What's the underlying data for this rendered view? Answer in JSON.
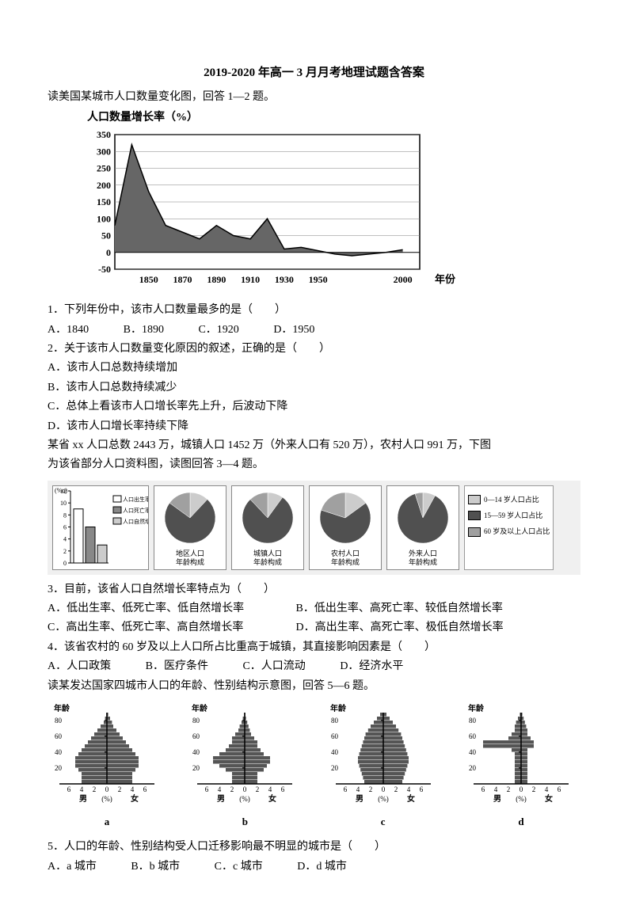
{
  "title": "2019-2020 年高一 3 月月考地理试题含答案",
  "intro1": "读美国某城市人口数量变化图，回答 1—2 题。",
  "chart1": {
    "type": "area",
    "title": "人口数量增长率（%）",
    "xlabel": "年份",
    "ylim": [
      -50,
      350
    ],
    "yticks": [
      -50,
      0,
      50,
      100,
      150,
      200,
      250,
      300,
      350
    ],
    "xticks": [
      1850,
      1870,
      1890,
      1910,
      1930,
      1950,
      2000
    ],
    "xlabel_far": "2000",
    "grid_color": "#808080",
    "fill_color": "#666666",
    "line_color": "#000000",
    "background_color": "#ffffff",
    "data_years": [
      1830,
      1840,
      1850,
      1860,
      1870,
      1880,
      1890,
      1900,
      1910,
      1920,
      1930,
      1940,
      1950,
      1960,
      1970,
      1980,
      1990,
      2000
    ],
    "data_values": [
      80,
      320,
      180,
      80,
      60,
      40,
      80,
      50,
      40,
      100,
      10,
      15,
      5,
      -5,
      -10,
      -5,
      0,
      8
    ]
  },
  "q1": {
    "stem": "1．下列年份中，该市人口数量最多的是（　　）",
    "opts": {
      "A": "A．1840",
      "B": "B．1890",
      "C": "C．1920",
      "D": "D．1950"
    }
  },
  "q2": {
    "stem": "2．关于该市人口数量变化原因的叙述，正确的是（　　）",
    "A": "A．该市人口总数持续增加",
    "B": "B．该市人口总数持续减少",
    "C": "C．总体上看该市人口增长率先上升，后波动下降",
    "D": "D．该市人口增长率持续下降"
  },
  "intro2a": "某省 xx 人口总数 2443 万，城镇人口 1452 万（外来人口有 520 万），农村人口 991 万，下图",
  "intro2b": "为该省部分人口资料图，读图回答 3—4 题。",
  "chart2": {
    "type": "bar+pie",
    "bar": {
      "ylabel": "(%o)",
      "ylim": [
        0,
        12
      ],
      "yticks": [
        0,
        2,
        4,
        6,
        8,
        10,
        12
      ],
      "categories": [
        "人口出生率",
        "人口死亡率",
        "人口自然增长率"
      ],
      "values": [
        9,
        6,
        3
      ],
      "colors": [
        "#ffffff",
        "#888888",
        "#cccccc"
      ],
      "border_color": "#000000"
    },
    "pies": [
      {
        "label": "地区人口年龄构成",
        "slices": [
          12,
          73,
          15
        ],
        "colors": [
          "#cccccc",
          "#505050",
          "#a0a0a0"
        ]
      },
      {
        "label": "城镇人口年龄构成",
        "slices": [
          10,
          78,
          12
        ],
        "colors": [
          "#cccccc",
          "#505050",
          "#a0a0a0"
        ]
      },
      {
        "label": "农村人口年龄构成",
        "slices": [
          15,
          65,
          20
        ],
        "colors": [
          "#cccccc",
          "#505050",
          "#a0a0a0"
        ]
      },
      {
        "label": "外来人口年龄构成",
        "slices": [
          8,
          87,
          5
        ],
        "colors": [
          "#cccccc",
          "#505050",
          "#a0a0a0"
        ]
      }
    ],
    "legend": [
      {
        "label": "0—14 岁人口占比",
        "color": "#cccccc"
      },
      {
        "label": "15—59 岁人口占比",
        "color": "#505050"
      },
      {
        "label": "60 岁及以上人口占比",
        "color": "#a0a0a0"
      }
    ]
  },
  "q3": {
    "stem": "3．目前，该省人口自然增长率特点为（　　）",
    "A": "A．低出生率、低死亡率、低自然增长率",
    "B": "B．低出生率、高死亡率、较低自然增长率",
    "C": "C．高出生率、低死亡率、高自然增长率",
    "D": "D．高出生率、高死亡率、极低自然增长率"
  },
  "q4": {
    "stem": "4．该省农村的 60 岁及以上人口所占比重高于城镇，其直接影响因素是（　　）",
    "opts": {
      "A": "A．人口政策",
      "B": "B．医疗条件",
      "C": "C．人口流动",
      "D": "D．经济水平"
    }
  },
  "intro3": "读某发达国家四城市人口的年龄、性别结构示意图，回答 5—6 题。",
  "pyramids": {
    "ylabel": "年龄",
    "yticks": [
      20,
      40,
      60,
      80
    ],
    "xticks": [
      6,
      4,
      2,
      0,
      2,
      4,
      6
    ],
    "xlabel_male": "男",
    "xlabel_pct": "(%)",
    "xlabel_female": "女",
    "fill_color": "#555555",
    "items": [
      {
        "id": "a",
        "male": [
          4,
          4,
          4,
          4.5,
          5,
          5,
          5,
          4.5,
          4,
          3.5,
          3,
          2.5,
          2,
          1.5,
          1,
          0.5,
          0.3,
          0.1
        ],
        "female": [
          4,
          4,
          4,
          4.5,
          5,
          5,
          5,
          4.5,
          4,
          3.5,
          3,
          2.5,
          2,
          1.5,
          1,
          0.8,
          0.5,
          0.2
        ]
      },
      {
        "id": "b",
        "male": [
          2,
          2,
          2,
          3,
          4,
          5,
          5,
          4,
          3,
          2.5,
          2,
          2,
          1.5,
          1,
          0.8,
          0.5,
          0.3,
          0.1
        ],
        "female": [
          2,
          2,
          2,
          3,
          3.5,
          4,
          4,
          3,
          2.5,
          2,
          2,
          1.5,
          1,
          0.8,
          0.6,
          0.4,
          0.2,
          0.1
        ]
      },
      {
        "id": "c",
        "male": [
          3,
          3.2,
          3.4,
          3.6,
          3.8,
          4,
          4,
          3.8,
          3.6,
          3.4,
          3.2,
          3,
          2.8,
          2.4,
          2,
          1.5,
          1,
          0.5
        ],
        "female": [
          3,
          3.2,
          3.4,
          3.6,
          3.8,
          4,
          4,
          3.8,
          3.6,
          3.4,
          3.2,
          3,
          2.8,
          2.4,
          2,
          1.5,
          1,
          0.5
        ]
      },
      {
        "id": "d",
        "male": [
          1,
          1,
          1,
          1,
          1,
          1,
          1,
          1,
          1.5,
          6,
          6,
          2,
          1.5,
          1,
          1,
          0.8,
          0.5,
          0.2
        ],
        "female": [
          1,
          1,
          1,
          1,
          1,
          1,
          1,
          1,
          1,
          2,
          2,
          1.5,
          1,
          1,
          0.8,
          0.6,
          0.4,
          0.2
        ]
      }
    ]
  },
  "q5": {
    "stem": "5．人口的年龄、性别结构受人口迁移影响最不明显的城市是（　　）",
    "opts": {
      "A": "A．a 城市",
      "B": "B．b 城市",
      "C": "C．c 城市",
      "D": "D．d 城市"
    }
  }
}
